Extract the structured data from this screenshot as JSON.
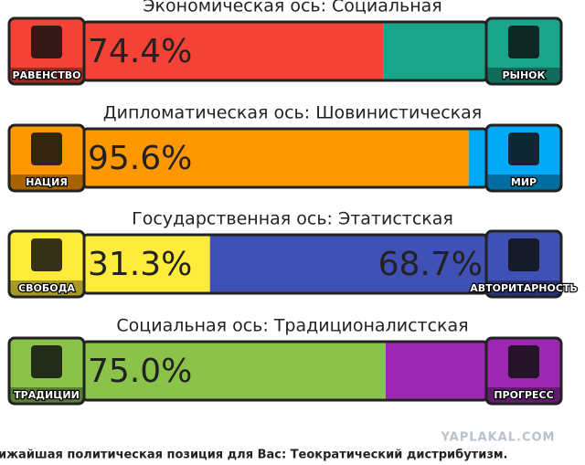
{
  "chart_data": [
    {
      "type": "bar",
      "title": "Экономическая ось: Социальная",
      "xlim": [
        0,
        100
      ],
      "series": [
        {
          "name": "РАВЕНСТВО",
          "color": "#f44336",
          "values": [
            74.4
          ],
          "value_labels": [
            "74.4%"
          ]
        },
        {
          "name": "РЫНОК",
          "color": "#1aa58a",
          "values": [
            25.6
          ]
        }
      ]
    },
    {
      "type": "bar",
      "title": "Дипломатическая ось: Шовинистическая",
      "xlim": [
        0,
        100
      ],
      "series": [
        {
          "name": "НАЦИЯ",
          "color": "#ff9800",
          "values": [
            95.6
          ],
          "value_labels": [
            "95.6%"
          ]
        },
        {
          "name": "МИР",
          "color": "#03a9f4",
          "values": [
            4.4
          ]
        }
      ]
    },
    {
      "type": "bar",
      "title": "Государственная ось: Этатистская",
      "xlim": [
        0,
        100
      ],
      "series": [
        {
          "name": "СВОБОДА",
          "color": "#ffeb3b",
          "values": [
            31.3
          ],
          "value_labels": [
            "31.3%"
          ]
        },
        {
          "name": "АВТОРИТАРНОСТЬ",
          "color": "#3f51b5",
          "values": [
            68.7
          ],
          "value_labels": [
            "68.7%"
          ]
        }
      ]
    },
    {
      "type": "bar",
      "title": "Социальная ось: Традиционалистская",
      "xlim": [
        0,
        100
      ],
      "series": [
        {
          "name": "ТРАДИЦИИ",
          "color": "#8bc34a",
          "values": [
            75.0
          ],
          "value_labels": [
            "75.0%"
          ]
        },
        {
          "name": "ПРОГРЕСС",
          "color": "#9c27b0",
          "values": [
            25.0
          ]
        }
      ]
    }
  ],
  "watermark": "YAPLAKAL.COM",
  "footer": "ижайшая политическая позиция для Вас: Теократический дистрибутизм."
}
